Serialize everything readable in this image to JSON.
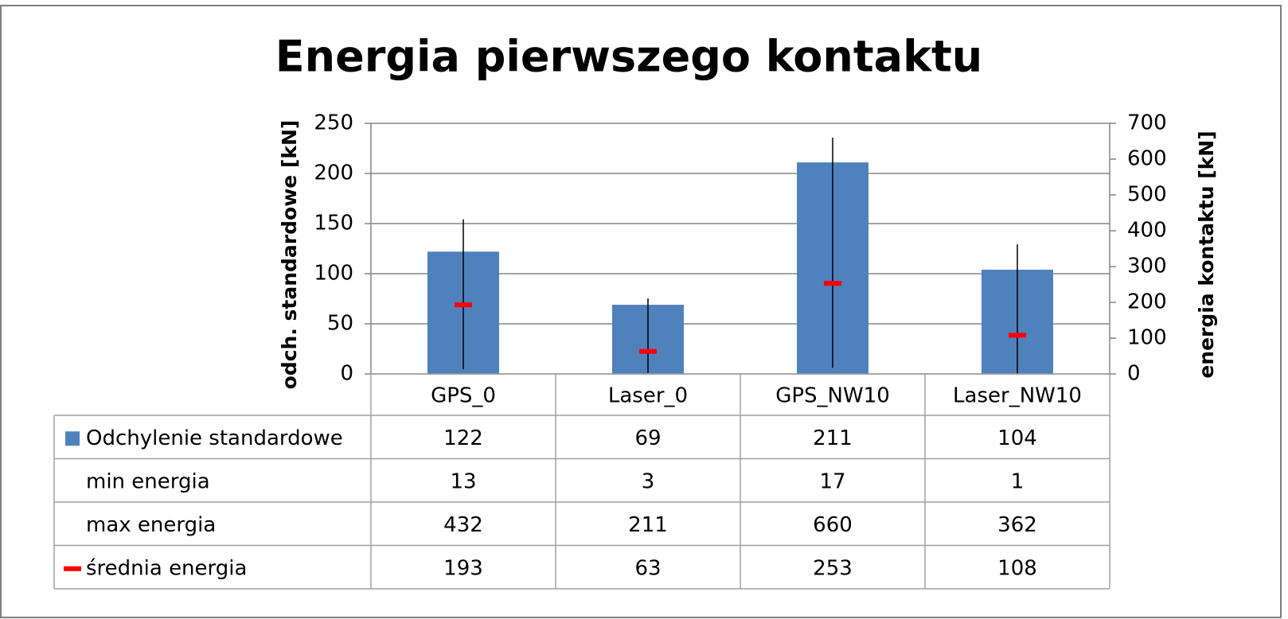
{
  "chart_data": {
    "type": "bar",
    "title": "Energia pierwszego kontaktu",
    "y_label": "odch. standardowe [kN]",
    "y2_label": "energia kontaktu [kN]",
    "categories": [
      "GPS_0",
      "Laser_0",
      "GPS_NW10",
      "Laser_NW10"
    ],
    "series": [
      {
        "name": "Odchylenie standardowe",
        "style": "bar",
        "color": "#4f81bd",
        "values": [
          122,
          69,
          211,
          104
        ]
      },
      {
        "name": "min energia",
        "style": "low",
        "axis": "y2",
        "color": "#000000",
        "values": [
          13,
          3,
          17,
          1
        ]
      },
      {
        "name": "max energia",
        "style": "high",
        "axis": "y2",
        "color": "#000000",
        "values": [
          432,
          211,
          660,
          362
        ]
      },
      {
        "name": "średnia energia",
        "style": "marker",
        "axis": "y2",
        "color": "#ff0000",
        "values": [
          193,
          63,
          253,
          108
        ]
      }
    ],
    "ylim": [
      0,
      250
    ],
    "yticks": [
      0,
      50,
      100,
      150,
      200,
      250
    ],
    "y2lim": [
      0,
      700
    ],
    "y2ticks": [
      0,
      100,
      200,
      300,
      400,
      500,
      600,
      700
    ],
    "grid": true,
    "data_table": true
  }
}
